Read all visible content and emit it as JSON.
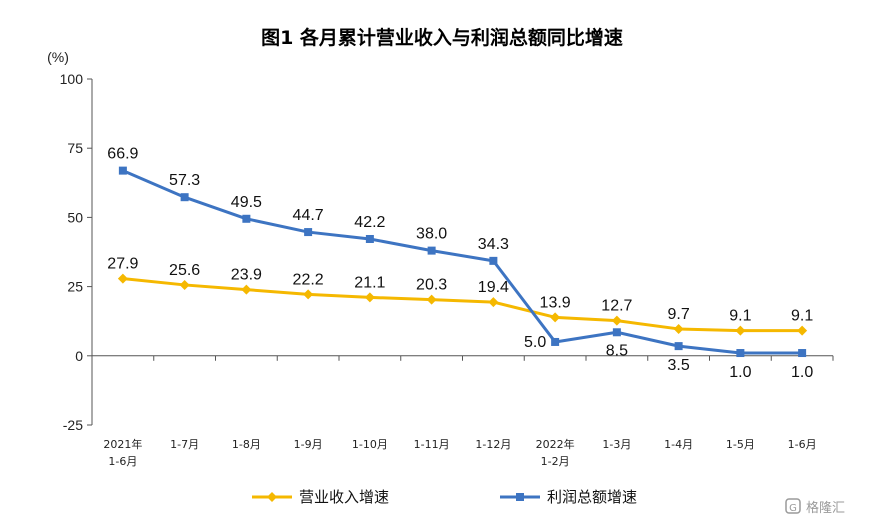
{
  "chart_data": {
    "type": "line",
    "title": "图1  各月累计营业收入与利润总额同比增速",
    "ylabel": "(%)",
    "ylim": [
      -25,
      100
    ],
    "yticks": [
      100,
      75,
      50,
      25,
      0,
      -25
    ],
    "grid": false,
    "legend_position": "bottom",
    "categories": [
      [
        "2021年",
        "1-6月"
      ],
      [
        "1-7月"
      ],
      [
        "1-8月"
      ],
      [
        "1-9月"
      ],
      [
        "1-10月"
      ],
      [
        "1-11月"
      ],
      [
        "1-12月"
      ],
      [
        "2022年",
        "1-2月"
      ],
      [
        "1-3月"
      ],
      [
        "1-4月"
      ],
      [
        "1-5月"
      ],
      [
        "1-6月"
      ]
    ],
    "series": [
      {
        "name": "营业收入增速",
        "color": "#F5B800",
        "marker": "diamond",
        "values": [
          27.9,
          25.6,
          23.9,
          22.2,
          21.1,
          20.3,
          19.4,
          13.9,
          12.7,
          9.7,
          9.1,
          9.1
        ],
        "labels": [
          "27.9",
          "25.6",
          "23.9",
          "22.2",
          "21.1",
          "20.3",
          "19.4",
          "13.9",
          "12.7",
          "9.7",
          "9.1",
          "9.1"
        ]
      },
      {
        "name": "利润总额增速",
        "color": "#3D74C2",
        "marker": "square",
        "values": [
          66.9,
          57.3,
          49.5,
          44.7,
          42.2,
          38.0,
          34.3,
          5.0,
          8.5,
          3.5,
          1.0,
          1.0
        ],
        "labels": [
          "66.9",
          "57.3",
          "49.5",
          "44.7",
          "42.2",
          "38.0",
          "34.3",
          "5.0",
          "8.5",
          "3.5",
          "1.0",
          "1.0"
        ]
      }
    ]
  },
  "watermark": {
    "text": "格隆汇",
    "icon": "glh-logo-icon"
  }
}
